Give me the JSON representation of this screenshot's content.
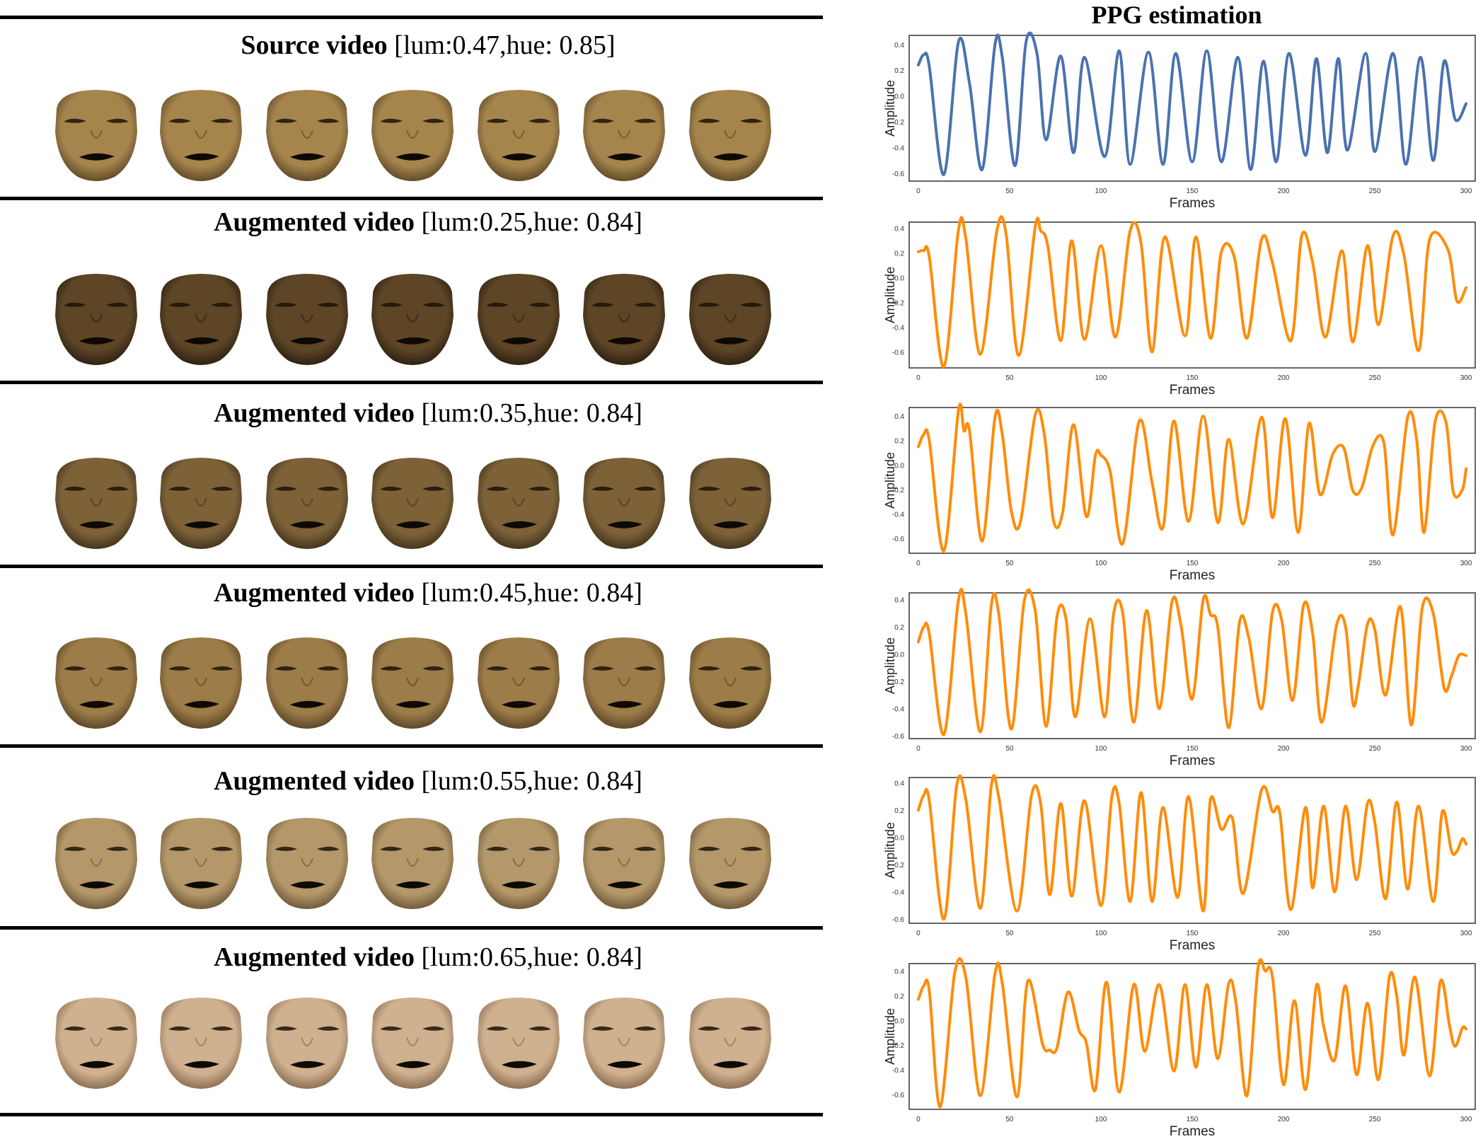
{
  "figure": {
    "right_title": "PPG estimation",
    "colors": {
      "source": "#4a72b0",
      "augmented": "#ff8c0a"
    }
  },
  "rows": [
    {
      "bold": "Source video",
      "rest": " [lum:0.47,hue: 0.85]",
      "face_color": "#a6854d",
      "face_shadow": "#5a4526",
      "face_icons": [
        "face-frame-icon",
        "face-frame-icon",
        "face-frame-icon",
        "face-frame-icon",
        "face-frame-icon",
        "face-frame-icon",
        "face-frame-icon"
      ]
    },
    {
      "bold": "Augmented video",
      "rest": " [lum:0.25,hue: 0.84]",
      "face_color": "#5d4526",
      "face_shadow": "#2a1e10",
      "face_icons": [
        "face-frame-icon",
        "face-frame-icon",
        "face-frame-icon",
        "face-frame-icon",
        "face-frame-icon",
        "face-frame-icon",
        "face-frame-icon"
      ]
    },
    {
      "bold": "Augmented video",
      "rest": " [lum:0.35,hue: 0.84]",
      "face_color": "#7d6238",
      "face_shadow": "#3f301a",
      "face_icons": [
        "face-frame-icon",
        "face-frame-icon",
        "face-frame-icon",
        "face-frame-icon",
        "face-frame-icon",
        "face-frame-icon",
        "face-frame-icon"
      ]
    },
    {
      "bold": "Augmented video",
      "rest": " [lum:0.45,hue: 0.84]",
      "face_color": "#9c7c48",
      "face_shadow": "#574224",
      "face_icons": [
        "face-frame-icon",
        "face-frame-icon",
        "face-frame-icon",
        "face-frame-icon",
        "face-frame-icon",
        "face-frame-icon",
        "face-frame-icon"
      ]
    },
    {
      "bold": "Augmented video",
      "rest": " [lum:0.55,hue: 0.84]",
      "face_color": "#b4986a",
      "face_shadow": "#6a5434",
      "face_icons": [
        "face-frame-icon",
        "face-frame-icon",
        "face-frame-icon",
        "face-frame-icon",
        "face-frame-icon",
        "face-frame-icon",
        "face-frame-icon"
      ]
    },
    {
      "bold": "Augmented video",
      "rest": " [lum:0.65,hue: 0.84]",
      "face_color": "#cfb08f",
      "face_shadow": "#866a4e",
      "face_icons": [
        "face-frame-icon",
        "face-frame-icon",
        "face-frame-icon",
        "face-frame-icon",
        "face-frame-icon",
        "face-frame-icon",
        "face-frame-icon"
      ]
    }
  ],
  "chart_data": [
    {
      "type": "line",
      "xlabel": "Frames",
      "ylabel": "Amplitude",
      "xlim": [
        -5,
        305
      ],
      "ylim": [
        -0.66,
        0.47
      ],
      "xticks": [
        0,
        50,
        100,
        150,
        200,
        250,
        300
      ],
      "yticks": [
        -0.6,
        -0.4,
        -0.2,
        0.0,
        0.2,
        0.4
      ],
      "ytick_labels": [
        "-0.6",
        "-0.4",
        "-0.2",
        "0.0",
        "0.2",
        "0.4"
      ],
      "series": [
        {
          "color": "#4a72b0",
          "x": [
            0,
            3,
            6,
            14,
            22,
            28,
            35,
            42,
            46,
            53,
            59,
            65,
            70,
            78,
            85,
            91,
            102,
            110,
            116,
            126,
            134,
            141,
            150,
            158,
            166,
            175,
            182,
            189,
            196,
            203,
            212,
            218,
            224,
            230,
            235,
            245,
            250,
            260,
            267,
            275,
            282,
            288,
            294,
            300
          ],
          "y": [
            0.24,
            0.32,
            0.23,
            -0.61,
            0.42,
            0.1,
            -0.57,
            0.4,
            0.3,
            -0.54,
            0.42,
            0.33,
            -0.34,
            0.31,
            -0.44,
            0.3,
            -0.47,
            0.35,
            -0.53,
            0.34,
            -0.53,
            0.33,
            -0.51,
            0.35,
            -0.51,
            0.3,
            -0.57,
            0.27,
            -0.51,
            0.33,
            -0.46,
            0.29,
            -0.44,
            0.29,
            -0.42,
            0.33,
            -0.43,
            0.33,
            -0.53,
            0.3,
            -0.5,
            0.27,
            -0.18,
            -0.06
          ]
        }
      ]
    },
    {
      "type": "line",
      "xlabel": "Frames",
      "ylabel": "Amplitude",
      "xlim": [
        -5,
        305
      ],
      "ylim": [
        -0.73,
        0.45
      ],
      "xticks": [
        0,
        50,
        100,
        150,
        200,
        250,
        300
      ],
      "yticks": [
        -0.6,
        -0.4,
        -0.2,
        0.0,
        0.2,
        0.4
      ],
      "ytick_labels": [
        "-0.6",
        "-0.4",
        "-0.2",
        "0.0",
        "0.2",
        "0.4"
      ],
      "series": [
        {
          "color": "#ff8c0a",
          "x": [
            0,
            3,
            6,
            14,
            22,
            26,
            34,
            43,
            48,
            55,
            64,
            67,
            71,
            78,
            84,
            91,
            100,
            108,
            116,
            122,
            128,
            135,
            146,
            152,
            160,
            166,
            173,
            180,
            188,
            194,
            204,
            210,
            216,
            223,
            232,
            238,
            246,
            252,
            260,
            266,
            274,
            280,
            290,
            295,
            300
          ],
          "y": [
            0.21,
            0.22,
            0.17,
            -0.72,
            0.39,
            0.32,
            -0.62,
            0.38,
            0.36,
            -0.63,
            0.41,
            0.38,
            0.25,
            -0.51,
            0.3,
            -0.5,
            0.26,
            -0.48,
            0.38,
            0.28,
            -0.6,
            0.33,
            -0.47,
            0.33,
            -0.49,
            0.21,
            0.17,
            -0.49,
            0.31,
            0.12,
            -0.51,
            0.34,
            0.12,
            -0.48,
            0.22,
            -0.52,
            0.26,
            -0.38,
            0.34,
            0.18,
            -0.59,
            0.31,
            0.23,
            -0.19,
            -0.08
          ]
        }
      ]
    },
    {
      "type": "line",
      "xlabel": "Frames",
      "ylabel": "Amplitude",
      "xlim": [
        -5,
        305
      ],
      "ylim": [
        -0.72,
        0.47
      ],
      "xticks": [
        0,
        50,
        100,
        150,
        200,
        250,
        300
      ],
      "yticks": [
        -0.6,
        -0.4,
        -0.2,
        0.0,
        0.2,
        0.4
      ],
      "ytick_labels": [
        "-0.6",
        "-0.4",
        "-0.2",
        "0.0",
        "0.2",
        "0.4"
      ],
      "series": [
        {
          "color": "#ff8c0a",
          "x": [
            0,
            3,
            6,
            14,
            22,
            25,
            28,
            35,
            42,
            46,
            51,
            56,
            64,
            69,
            74,
            79,
            85,
            92,
            97,
            100,
            105,
            112,
            121,
            128,
            134,
            140,
            148,
            156,
            164,
            170,
            178,
            188,
            194,
            201,
            208,
            214,
            220,
            227,
            233,
            238,
            243,
            249,
            255,
            260,
            268,
            273,
            277,
            283,
            289,
            293,
            298,
            300
          ],
          "y": [
            0.15,
            0.25,
            0.2,
            -0.7,
            0.45,
            0.28,
            0.28,
            -0.62,
            0.39,
            0.25,
            -0.38,
            -0.46,
            0.41,
            0.25,
            -0.45,
            -0.39,
            0.33,
            -0.42,
            0.08,
            0.08,
            -0.05,
            -0.64,
            0.36,
            -0.14,
            -0.51,
            0.36,
            -0.46,
            0.4,
            -0.47,
            0.21,
            -0.48,
            0.39,
            -0.43,
            0.38,
            -0.55,
            0.34,
            -0.24,
            0.09,
            0.14,
            -0.21,
            -0.18,
            0.16,
            0.18,
            -0.57,
            0.39,
            0.2,
            -0.55,
            0.35,
            0.35,
            -0.22,
            -0.2,
            -0.03
          ]
        }
      ]
    },
    {
      "type": "line",
      "xlabel": "Frames",
      "ylabel": "Amplitude",
      "xlim": [
        -5,
        305
      ],
      "ylim": [
        -0.62,
        0.45
      ],
      "xticks": [
        0,
        50,
        100,
        150,
        200,
        250,
        300
      ],
      "yticks": [
        -0.6,
        -0.4,
        -0.2,
        0.0,
        0.2,
        0.4
      ],
      "ytick_labels": [
        "-0.6",
        "-0.4",
        "-0.2",
        "0.0",
        "0.2",
        "0.4"
      ],
      "series": [
        {
          "color": "#ff8c0a",
          "x": [
            0,
            3,
            6,
            14,
            22,
            26,
            34,
            40,
            44,
            51,
            58,
            64,
            70,
            76,
            81,
            86,
            94,
            102,
            107,
            112,
            118,
            125,
            132,
            139,
            144,
            150,
            156,
            160,
            164,
            170,
            176,
            181,
            188,
            194,
            199,
            205,
            211,
            216,
            221,
            229,
            234,
            238,
            241,
            246,
            250,
            256,
            264,
            270,
            276,
            282,
            288,
            292,
            296,
            300
          ],
          "y": [
            0.09,
            0.2,
            0.15,
            -0.59,
            0.4,
            0.3,
            -0.57,
            0.36,
            0.3,
            -0.55,
            0.39,
            0.32,
            -0.53,
            0.28,
            0.25,
            -0.46,
            0.26,
            -0.46,
            0.3,
            0.3,
            -0.5,
            0.32,
            -0.4,
            0.39,
            0.2,
            -0.33,
            0.4,
            0.29,
            0.2,
            -0.54,
            0.24,
            0.12,
            -0.4,
            0.31,
            0.25,
            -0.34,
            0.36,
            0.15,
            -0.5,
            0.21,
            0.2,
            -0.36,
            -0.23,
            0.22,
            0.18,
            -0.3,
            0.35,
            -0.52,
            0.34,
            0.3,
            -0.25,
            -0.16,
            -0.01,
            -0.01
          ]
        }
      ]
    },
    {
      "type": "line",
      "xlabel": "Frames",
      "ylabel": "Amplitude",
      "xlim": [
        -5,
        305
      ],
      "ylim": [
        -0.63,
        0.44
      ],
      "xticks": [
        0,
        50,
        100,
        150,
        200,
        250,
        300
      ],
      "yticks": [
        -0.6,
        -0.4,
        -0.2,
        0.0,
        0.2,
        0.4
      ],
      "ytick_labels": [
        "-0.6",
        "-0.4",
        "-0.2",
        "0.0",
        "0.2",
        "0.4"
      ],
      "series": [
        {
          "color": "#ff8c0a",
          "x": [
            0,
            3,
            6,
            14,
            21,
            26,
            34,
            40,
            44,
            54,
            62,
            67,
            72,
            78,
            84,
            91,
            100,
            106,
            110,
            116,
            122,
            128,
            134,
            142,
            148,
            156,
            160,
            166,
            172,
            178,
            188,
            194,
            198,
            204,
            212,
            216,
            222,
            228,
            234,
            240,
            246,
            250,
            256,
            262,
            268,
            274,
            282,
            287,
            292,
            295,
            298,
            300
          ],
          "y": [
            0.2,
            0.31,
            0.27,
            -0.6,
            0.38,
            0.28,
            -0.52,
            0.38,
            0.3,
            -0.54,
            0.31,
            0.25,
            -0.42,
            0.25,
            -0.43,
            0.27,
            -0.5,
            0.3,
            0.25,
            -0.47,
            0.33,
            -0.47,
            0.22,
            -0.44,
            0.3,
            -0.54,
            0.28,
            0.06,
            0.14,
            -0.41,
            0.35,
            0.19,
            0.18,
            -0.53,
            0.22,
            -0.37,
            0.23,
            -0.4,
            0.23,
            -0.31,
            0.25,
            0.11,
            -0.45,
            0.26,
            -0.38,
            0.23,
            -0.47,
            0.19,
            -0.1,
            -0.1,
            -0.01,
            -0.05
          ]
        }
      ]
    },
    {
      "type": "line",
      "xlabel": "Frames",
      "ylabel": "Amplitude",
      "xlim": [
        -5,
        305
      ],
      "ylim": [
        -0.72,
        0.46
      ],
      "xticks": [
        0,
        50,
        100,
        150,
        200,
        250,
        300
      ],
      "yticks": [
        -0.6,
        -0.4,
        -0.2,
        0.0,
        0.2,
        0.4
      ],
      "ytick_labels": [
        "-0.6",
        "-0.4",
        "-0.2",
        "0.0",
        "0.2",
        "0.4"
      ],
      "series": [
        {
          "color": "#ff8c0a",
          "x": [
            0,
            3,
            6,
            12,
            20,
            26,
            34,
            42,
            46,
            54,
            60,
            68,
            72,
            76,
            82,
            88,
            92,
            97,
            103,
            110,
            118,
            124,
            132,
            140,
            146,
            152,
            158,
            164,
            170,
            174,
            180,
            186,
            190,
            194,
            200,
            206,
            212,
            218,
            222,
            228,
            234,
            240,
            246,
            252,
            258,
            262,
            266,
            272,
            280,
            286,
            291,
            294,
            298,
            300
          ],
          "y": [
            0.17,
            0.28,
            0.24,
            -0.7,
            0.39,
            0.35,
            -0.61,
            0.38,
            0.3,
            -0.62,
            0.32,
            -0.19,
            -0.24,
            -0.22,
            0.23,
            -0.08,
            -0.18,
            -0.56,
            0.31,
            -0.58,
            0.29,
            -0.25,
            0.29,
            -0.41,
            0.29,
            -0.38,
            0.29,
            -0.31,
            0.3,
            0.14,
            -0.61,
            0.42,
            0.4,
            0.35,
            -0.52,
            0.16,
            -0.56,
            0.28,
            -0.05,
            -0.32,
            0.28,
            -0.44,
            0.14,
            -0.48,
            0.35,
            0.2,
            -0.28,
            0.35,
            -0.45,
            0.32,
            -0.05,
            -0.21,
            -0.06,
            -0.07
          ]
        }
      ]
    }
  ]
}
